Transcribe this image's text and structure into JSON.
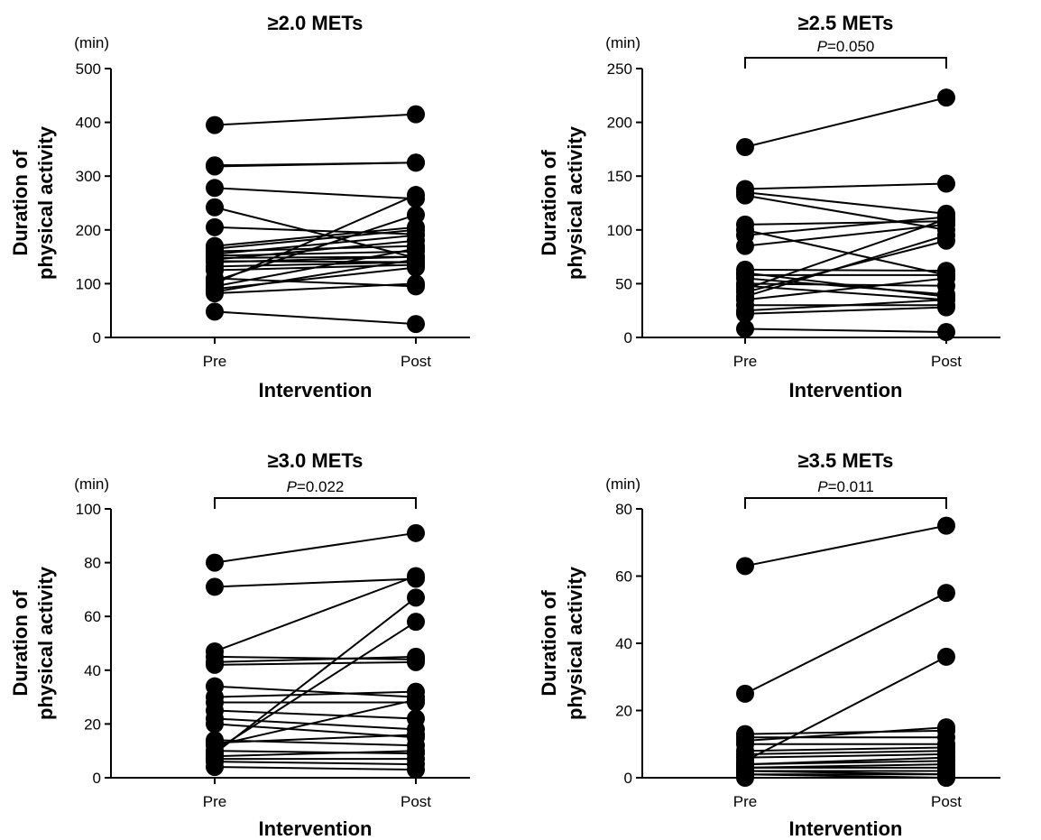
{
  "chart_data": [
    {
      "type": "line",
      "title": "≥2.0 METs",
      "unit_label": "(min)",
      "ylabel_line1": "Duration of",
      "ylabel_line2": "physical activity",
      "xlabel": "Intervention",
      "categories": [
        "Pre",
        "Post"
      ],
      "ylim": [
        0,
        500
      ],
      "yticks": [
        0,
        100,
        200,
        300,
        400,
        500
      ],
      "p_value_prefix": "P",
      "p_value_text": "",
      "pairs": [
        [
          395,
          415
        ],
        [
          320,
          325
        ],
        [
          318,
          325
        ],
        [
          278,
          258
        ],
        [
          242,
          148
        ],
        [
          205,
          192
        ],
        [
          170,
          205
        ],
        [
          165,
          200
        ],
        [
          160,
          170
        ],
        [
          155,
          190
        ],
        [
          152,
          160
        ],
        [
          148,
          150
        ],
        [
          145,
          180
        ],
        [
          142,
          140
        ],
        [
          140,
          150
        ],
        [
          132,
          140
        ],
        [
          125,
          135
        ],
        [
          110,
          95
        ],
        [
          105,
          228
        ],
        [
          100,
          265
        ],
        [
          95,
          165
        ],
        [
          90,
          130
        ],
        [
          85,
          145
        ],
        [
          82,
          100
        ],
        [
          48,
          25
        ]
      ]
    },
    {
      "type": "line",
      "title": "≥2.5 METs",
      "unit_label": "(min)",
      "ylabel_line1": "Duration of",
      "ylabel_line2": "physical activity",
      "xlabel": "Intervention",
      "categories": [
        "Pre",
        "Post"
      ],
      "ylim": [
        0,
        250
      ],
      "yticks": [
        0,
        50,
        100,
        150,
        200,
        250
      ],
      "p_value_prefix": "P",
      "p_value_text": "=0.050",
      "pairs": [
        [
          177,
          223
        ],
        [
          138,
          143
        ],
        [
          135,
          115
        ],
        [
          132,
          100
        ],
        [
          105,
          108
        ],
        [
          100,
          58
        ],
        [
          95,
          112
        ],
        [
          85,
          105
        ],
        [
          63,
          62
        ],
        [
          60,
          38
        ],
        [
          58,
          58
        ],
        [
          55,
          40
        ],
        [
          50,
          48
        ],
        [
          48,
          35
        ],
        [
          45,
          110
        ],
        [
          42,
          90
        ],
        [
          38,
          95
        ],
        [
          35,
          55
        ],
        [
          30,
          30
        ],
        [
          25,
          35
        ],
        [
          22,
          28
        ],
        [
          8,
          5
        ]
      ]
    },
    {
      "type": "line",
      "title": "≥3.0 METs",
      "unit_label": "(min)",
      "ylabel_line1": "Duration of",
      "ylabel_line2": "physical activity",
      "xlabel": "Intervention",
      "categories": [
        "Pre",
        "Post"
      ],
      "ylim": [
        0,
        100
      ],
      "yticks": [
        0,
        20,
        40,
        60,
        80,
        100
      ],
      "p_value_prefix": "P",
      "p_value_text": "=0.022",
      "pairs": [
        [
          80,
          91
        ],
        [
          71,
          74
        ],
        [
          47,
          75
        ],
        [
          45,
          44
        ],
        [
          43,
          45
        ],
        [
          42,
          43
        ],
        [
          34,
          30
        ],
        [
          30,
          32
        ],
        [
          28,
          28
        ],
        [
          25,
          22
        ],
        [
          22,
          18
        ],
        [
          20,
          15
        ],
        [
          14,
          12
        ],
        [
          13,
          16
        ],
        [
          12,
          29
        ],
        [
          10,
          58
        ],
        [
          10,
          9
        ],
        [
          9,
          67
        ],
        [
          8,
          10
        ],
        [
          7,
          7
        ],
        [
          6,
          5
        ],
        [
          4,
          3
        ]
      ]
    },
    {
      "type": "line",
      "title": "≥3.5 METs",
      "unit_label": "(min)",
      "ylabel_line1": "Duration of",
      "ylabel_line2": "physical activity",
      "xlabel": "Intervention",
      "categories": [
        "Pre",
        "Post"
      ],
      "ylim": [
        0,
        80
      ],
      "yticks": [
        0,
        20,
        40,
        60,
        80
      ],
      "p_value_prefix": "P",
      "p_value_text": "=0.011",
      "pairs": [
        [
          63,
          75
        ],
        [
          25,
          55
        ],
        [
          13,
          14
        ],
        [
          12,
          12
        ],
        [
          11,
          15
        ],
        [
          10,
          10
        ],
        [
          8,
          9
        ],
        [
          7,
          8
        ],
        [
          6,
          7
        ],
        [
          5,
          36
        ],
        [
          4,
          5
        ],
        [
          4,
          6
        ],
        [
          3,
          4
        ],
        [
          3,
          3
        ],
        [
          2,
          2
        ],
        [
          2,
          1
        ],
        [
          1,
          1
        ],
        [
          1,
          0
        ],
        [
          0,
          0
        ]
      ]
    }
  ]
}
